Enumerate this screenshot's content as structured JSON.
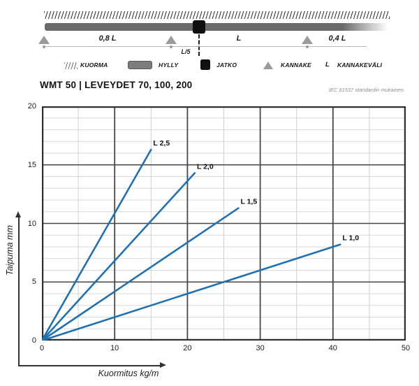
{
  "diagram": {
    "dim_labels": {
      "left_span": "0,8 L",
      "joint_offset": "L/5",
      "mid_span": "L",
      "right_span": "0,4 L"
    },
    "legend": [
      {
        "icon": "hatch-swatch",
        "label": "KUORMA"
      },
      {
        "icon": "shelf-swatch",
        "label": "HYLLY"
      },
      {
        "icon": "joint-swatch",
        "label": "JATKO"
      },
      {
        "icon": "support-swatch",
        "label": "KANNAKE"
      },
      {
        "icon": "letter-L",
        "symbol": "L",
        "label": "KANNAKEVÄLI"
      }
    ],
    "colors": {
      "shelf": "#6a6a6a",
      "joint": "#0e0e0e",
      "support": "#9b9b9b"
    }
  },
  "header": {
    "title": "WMT 50 | LEVEYDET 70, 100, 200",
    "standard_note": "IEC 61537 standardin mukainen."
  },
  "chart_data": {
    "type": "line",
    "title": "WMT 50 | LEVEYDET 70, 100, 200",
    "xlabel": "Kuormitus kg/m",
    "ylabel": "Taipuma mm",
    "xlim": [
      0,
      50
    ],
    "ylim": [
      0,
      20
    ],
    "x_ticks": [
      0,
      10,
      20,
      30,
      40,
      50
    ],
    "y_ticks": [
      0,
      5,
      10,
      15,
      20
    ],
    "minor_x_step": 5,
    "minor_y_step": 1,
    "grid": true,
    "legend_position": "inline-labels",
    "line_color": "#2271ae",
    "series": [
      {
        "name": "L 2,5",
        "points": [
          [
            0,
            0
          ],
          [
            15,
            16.3
          ]
        ]
      },
      {
        "name": "L 2,0",
        "points": [
          [
            0,
            0
          ],
          [
            21,
            14.3
          ]
        ]
      },
      {
        "name": "L 1,5",
        "points": [
          [
            0,
            0
          ],
          [
            27,
            11.3
          ]
        ]
      },
      {
        "name": "L 1,0",
        "points": [
          [
            0,
            0
          ],
          [
            41,
            8.2
          ]
        ]
      }
    ]
  }
}
